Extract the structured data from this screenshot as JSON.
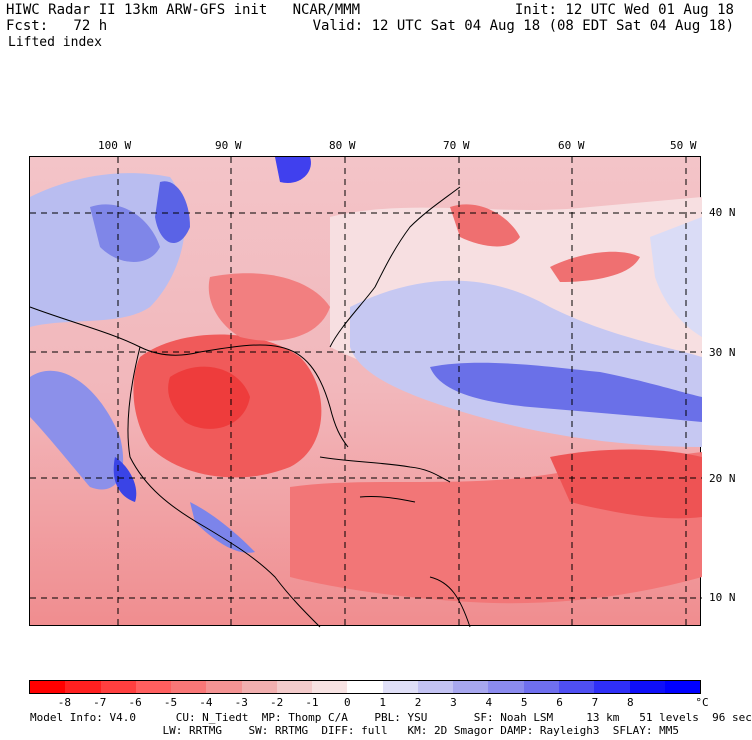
{
  "header": {
    "left_line1": "HIWC Radar II 13km ARW-GFS init   NCAR/MMM",
    "left_line2": "Fcst:   72 h",
    "variable": "Lifted index",
    "init": "Init: 12 UTC Wed 01 Aug 18",
    "valid": "Valid: 12 UTC Sat 04 Aug 18 (08 EDT Sat 04 Aug 18)"
  },
  "map": {
    "lon_labels": [
      "100 W",
      "90 W",
      "80 W",
      "70 W",
      "60 W",
      "50 W"
    ],
    "lat_labels": [
      "40 N",
      "30 N",
      "20 N",
      "10 N"
    ]
  },
  "colorbar": {
    "colors": [
      "#ff0000",
      "#ff2020",
      "#ff3f3f",
      "#ff5f5f",
      "#f97777",
      "#f49393",
      "#f1afaf",
      "#f3cbcb",
      "#f7e3e3",
      "#ffffff",
      "#dfdff7",
      "#c3c3f3",
      "#a7a7ef",
      "#8b8bef",
      "#6f6fef",
      "#4f4ff3",
      "#2f2ff7",
      "#0f0ff9",
      "#0000ff"
    ],
    "labels": [
      "-8",
      "-7",
      "-6",
      "-5",
      "-4",
      "-3",
      "-2",
      "-1",
      "0",
      "1",
      "2",
      "3",
      "4",
      "5",
      "6",
      "7",
      "8"
    ],
    "unit": "°C"
  },
  "footer": {
    "line1": "Model Info: V4.0      CU: N_Tiedt  MP: Thomp C/A    PBL: YSU       SF: Noah LSM     13 km   51 levels  96 sec",
    "line2": "                    LW: RRTMG    SW: RRTMG  DIFF: full   KM: 2D Smagor DAMP: Rayleigh3  SFLAY: MM5"
  },
  "colors": {
    "strong_neg": "#f04848",
    "neg": "#f39a9c",
    "weak": "#f6d6d8",
    "pos": "#b8b8f2",
    "strong_pos": "#3030f0"
  }
}
